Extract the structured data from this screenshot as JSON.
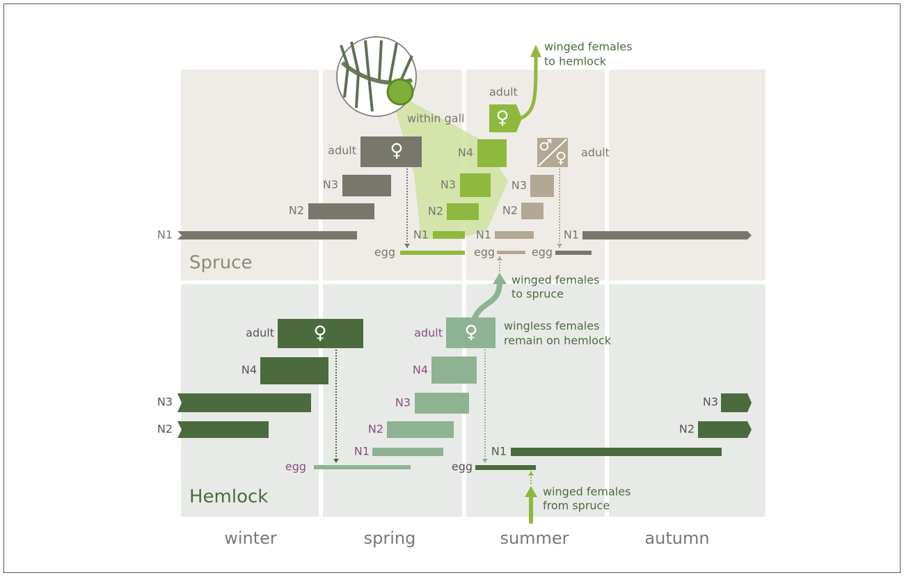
{
  "hosts": {
    "spruce": "Spruce",
    "hemlock": "Hemlock"
  },
  "seasons": [
    "winter",
    "spring",
    "summer",
    "autumn"
  ],
  "symbols": {
    "female": "♀",
    "male": "♂"
  },
  "notes": {
    "to_hemlock": [
      "winged females",
      "to hemlock"
    ],
    "within_gall": "within gall",
    "to_spruce": [
      "winged females",
      "to spruce"
    ],
    "wingless": [
      "wingless females",
      "remain on hemlock"
    ],
    "from_spruce": [
      "winged females",
      "from spruce"
    ]
  },
  "spruce": {
    "gray": [
      "adult",
      "N3",
      "N2",
      "N1"
    ],
    "green": [
      "adult",
      "N4",
      "N3",
      "N2",
      "N1",
      "egg"
    ],
    "tan": [
      "adult",
      "N3",
      "N2",
      "N1",
      "egg"
    ],
    "dark": [
      "N1",
      "egg"
    ]
  },
  "hemlock": {
    "dark": [
      "adult",
      "N4",
      "N3",
      "N2",
      "egg",
      "N1",
      "N3",
      "N2"
    ],
    "light": [
      "adult",
      "N4",
      "N3",
      "N2",
      "N1",
      "egg"
    ]
  }
}
